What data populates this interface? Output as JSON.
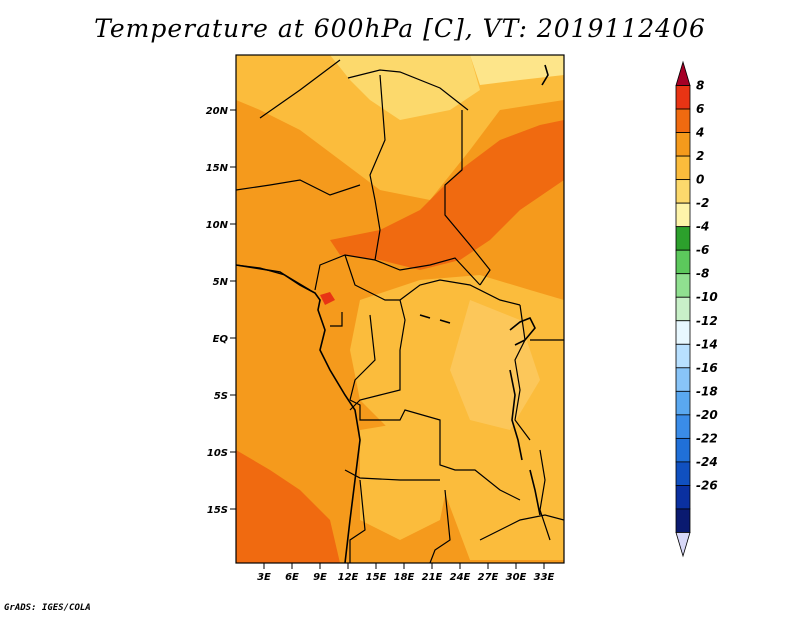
{
  "title": "Temperature at 600hPa [C], VT: 2019112406",
  "credit": "GrADS: IGES/COLA",
  "map": {
    "lat_labels": [
      "20N",
      "15N",
      "10N",
      "5N",
      "EQ",
      "5S",
      "10S",
      "15S"
    ],
    "lon_labels": [
      "3E",
      "6E",
      "9E",
      "12E",
      "15E",
      "18E",
      "21E",
      "24E",
      "27E",
      "30E",
      "33E"
    ]
  },
  "colorbar": {
    "labels": [
      "8",
      "6",
      "4",
      "2",
      "0",
      "-2",
      "-4",
      "-6",
      "-8",
      "-10",
      "-12",
      "-14",
      "-16",
      "-18",
      "-20",
      "-22",
      "-24",
      "-26"
    ],
    "colors": [
      "#a50026",
      "#e83414",
      "#f06a10",
      "#f59a1c",
      "#fbbc3c",
      "#fcd96c",
      "#fef4aa",
      "#2ca02c",
      "#5cc85c",
      "#90e090",
      "#c8f0c8",
      "#e8f8ff",
      "#b8e0ff",
      "#88c4f8",
      "#5aa8f0",
      "#3a8ce8",
      "#2070d8",
      "#1050c0",
      "#0a30a0",
      "#0a1a70",
      "#d8d8f8"
    ]
  }
}
